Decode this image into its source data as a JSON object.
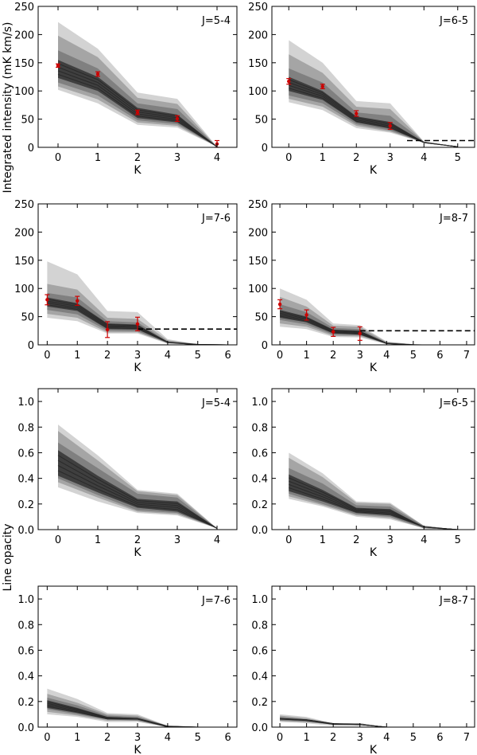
{
  "figure": {
    "ylabel_top": "Integrated intensity (mK km/s)",
    "ylabel_bottom": "Line opacity",
    "colors": {
      "outer_band": "#d3d3d3",
      "middle_band": "#a5a5a5",
      "inner_band": "#808080",
      "core_band": "#3f3f3f",
      "core_line": "#2a2a2a",
      "observed": "#cc0000",
      "limit": "#000000"
    }
  },
  "chart_data": [
    {
      "type": "area",
      "title": "J=5-4",
      "xlabel": "K",
      "ylabel": "Integrated intensity (mK km/s)",
      "xlim": [
        -0.5,
        4.5
      ],
      "ylim": [
        0,
        250
      ],
      "xticks": [
        0,
        1,
        2,
        3,
        4
      ],
      "yticks": [
        0,
        50,
        100,
        150,
        200,
        250
      ],
      "x": [
        0,
        1,
        2,
        3,
        4
      ],
      "bands": [
        {
          "name": "outer",
          "lower": [
            102,
            78,
            40,
            35,
            1
          ],
          "upper": [
            222,
            175,
            97,
            86,
            1
          ]
        },
        {
          "name": "middle",
          "lower": [
            108,
            85,
            44,
            38,
            1
          ],
          "upper": [
            198,
            160,
            88,
            77,
            1
          ]
        },
        {
          "name": "inner",
          "lower": [
            115,
            92,
            48,
            41,
            1
          ],
          "upper": [
            172,
            140,
            78,
            68,
            1
          ]
        },
        {
          "name": "core",
          "lower": [
            123,
            100,
            52,
            44,
            1
          ],
          "upper": [
            155,
            125,
            70,
            58,
            1
          ]
        }
      ],
      "observed": [
        {
          "k": 0,
          "value": 145,
          "err": 3
        },
        {
          "k": 1,
          "value": 130,
          "err": 4
        },
        {
          "k": 2,
          "value": 62,
          "err": 4
        },
        {
          "k": 3,
          "value": 51,
          "err": 5
        },
        {
          "k": 4,
          "value": 6,
          "err": 6
        }
      ]
    },
    {
      "type": "area",
      "title": "J=6-5",
      "xlabel": "K",
      "ylabel": "",
      "xlim": [
        -0.5,
        5.5
      ],
      "ylim": [
        0,
        250
      ],
      "xticks": [
        0,
        1,
        2,
        3,
        4,
        5
      ],
      "yticks": [
        0,
        50,
        100,
        150,
        200,
        250
      ],
      "x": [
        0,
        1,
        2,
        3,
        4,
        5
      ],
      "bands": [
        {
          "name": "outer",
          "lower": [
            80,
            66,
            34,
            26,
            8,
            1
          ],
          "upper": [
            190,
            150,
            82,
            78,
            10,
            1
          ]
        },
        {
          "name": "middle",
          "lower": [
            86,
            72,
            38,
            28,
            8,
            1
          ],
          "upper": [
            165,
            132,
            72,
            68,
            10,
            1
          ]
        },
        {
          "name": "inner",
          "lower": [
            92,
            78,
            41,
            30,
            8,
            1
          ],
          "upper": [
            140,
            115,
            62,
            56,
            10,
            1
          ]
        },
        {
          "name": "core",
          "lower": [
            100,
            84,
            44,
            33,
            8,
            1
          ],
          "upper": [
            125,
            100,
            55,
            45,
            9,
            1
          ]
        }
      ],
      "observed": [
        {
          "k": 0,
          "value": 117,
          "err": 5
        },
        {
          "k": 1,
          "value": 108,
          "err": 4
        },
        {
          "k": 2,
          "value": 60,
          "err": 5
        },
        {
          "k": 3,
          "value": 38,
          "err": 6
        }
      ],
      "limit": {
        "value": 12,
        "from": 3.5,
        "to": 5.5
      }
    },
    {
      "type": "area",
      "title": "J=7-6",
      "xlabel": "K",
      "ylabel": "",
      "xlim": [
        -0.3,
        6.3
      ],
      "ylim": [
        0,
        250
      ],
      "xticks": [
        0,
        1,
        2,
        3,
        4,
        5,
        6
      ],
      "yticks": [
        0,
        50,
        100,
        150,
        200,
        250
      ],
      "x": [
        0,
        1,
        2,
        3,
        4,
        5,
        6
      ],
      "bands": [
        {
          "name": "outer",
          "lower": [
            48,
            42,
            20,
            20,
            2,
            0,
            0
          ],
          "upper": [
            148,
            125,
            60,
            58,
            10,
            1,
            0
          ]
        },
        {
          "name": "middle",
          "lower": [
            55,
            48,
            22,
            22,
            3,
            0,
            0
          ],
          "upper": [
            108,
            98,
            48,
            46,
            8,
            1,
            0
          ]
        },
        {
          "name": "inner",
          "lower": [
            62,
            54,
            25,
            24,
            3,
            0,
            0
          ],
          "upper": [
            92,
            84,
            42,
            40,
            6,
            1,
            0
          ]
        },
        {
          "name": "core",
          "lower": [
            68,
            60,
            28,
            27,
            4,
            0,
            0
          ],
          "upper": [
            84,
            74,
            38,
            36,
            5,
            1,
            0
          ]
        }
      ],
      "observed": [
        {
          "k": 0,
          "value": 80,
          "err": 9
        },
        {
          "k": 1,
          "value": 78,
          "err": 8
        },
        {
          "k": 2,
          "value": 27,
          "err": 14
        },
        {
          "k": 3,
          "value": 37,
          "err": 12
        }
      ],
      "limit": {
        "value": 28,
        "from": 3.0,
        "to": 6.3
      }
    },
    {
      "type": "area",
      "title": "J=8-7",
      "xlabel": "K",
      "ylabel": "",
      "xlim": [
        -0.3,
        7.3
      ],
      "ylim": [
        0,
        250
      ],
      "xticks": [
        0,
        1,
        2,
        3,
        4,
        5,
        6,
        7
      ],
      "yticks": [
        0,
        50,
        100,
        150,
        200,
        250
      ],
      "x": [
        0,
        1,
        2,
        3,
        4,
        5,
        6,
        7
      ],
      "bands": [
        {
          "name": "outer",
          "lower": [
            32,
            28,
            14,
            13,
            1,
            0,
            0,
            0
          ],
          "upper": [
            100,
            80,
            38,
            35,
            6,
            1,
            0,
            0
          ]
        },
        {
          "name": "middle",
          "lower": [
            38,
            32,
            16,
            15,
            2,
            0,
            0,
            0
          ],
          "upper": [
            85,
            68,
            34,
            32,
            5,
            1,
            0,
            0
          ]
        },
        {
          "name": "inner",
          "lower": [
            44,
            36,
            18,
            17,
            2,
            0,
            0,
            0
          ],
          "upper": [
            72,
            58,
            30,
            28,
            4,
            1,
            0,
            0
          ]
        },
        {
          "name": "core",
          "lower": [
            48,
            40,
            20,
            18,
            2,
            0,
            0,
            0
          ],
          "upper": [
            62,
            50,
            27,
            25,
            3,
            0,
            0,
            0
          ]
        }
      ],
      "observed": [
        {
          "k": 0,
          "value": 72,
          "err": 8
        },
        {
          "k": 1,
          "value": 53,
          "err": 9
        },
        {
          "k": 2,
          "value": 23,
          "err": 8
        },
        {
          "k": 3,
          "value": 20,
          "err": 12
        }
      ],
      "limit": {
        "value": 25,
        "from": 3.0,
        "to": 7.3
      }
    },
    {
      "type": "area",
      "title": "J=5-4",
      "xlabel": "K",
      "ylabel": "Line opacity",
      "xlim": [
        -0.5,
        4.5
      ],
      "ylim": [
        0,
        1.1
      ],
      "xticks": [
        0,
        1,
        2,
        3,
        4
      ],
      "yticks": [
        0.0,
        0.2,
        0.4,
        0.6,
        0.8,
        1.0
      ],
      "ytick_labels": [
        "0.0",
        "0.2",
        "0.4",
        "0.6",
        "0.8",
        "1.0"
      ],
      "x": [
        0,
        1,
        2,
        3,
        4
      ],
      "bands": [
        {
          "name": "outer",
          "lower": [
            0.33,
            0.22,
            0.13,
            0.11,
            0.01
          ],
          "upper": [
            0.82,
            0.58,
            0.31,
            0.28,
            0.01
          ]
        },
        {
          "name": "middle",
          "lower": [
            0.37,
            0.25,
            0.14,
            0.12,
            0.01
          ],
          "upper": [
            0.77,
            0.54,
            0.3,
            0.27,
            0.01
          ]
        },
        {
          "name": "inner",
          "lower": [
            0.4,
            0.27,
            0.15,
            0.13,
            0.01
          ],
          "upper": [
            0.68,
            0.48,
            0.28,
            0.25,
            0.01
          ]
        },
        {
          "name": "core",
          "lower": [
            0.42,
            0.29,
            0.17,
            0.14,
            0.01
          ],
          "upper": [
            0.62,
            0.42,
            0.24,
            0.22,
            0.01
          ]
        }
      ]
    },
    {
      "type": "area",
      "title": "J=6-5",
      "xlabel": "K",
      "ylabel": "",
      "xlim": [
        -0.5,
        5.5
      ],
      "ylim": [
        0,
        1.1
      ],
      "xticks": [
        0,
        1,
        2,
        3,
        4,
        5
      ],
      "yticks": [
        0.0,
        0.2,
        0.4,
        0.6,
        0.8,
        1.0
      ],
      "ytick_labels": [
        "0.0",
        "0.2",
        "0.4",
        "0.6",
        "0.8",
        "1.0"
      ],
      "x": [
        0,
        1,
        2,
        3,
        4,
        5
      ],
      "bands": [
        {
          "name": "outer",
          "lower": [
            0.24,
            0.18,
            0.1,
            0.08,
            0.01,
            0.0
          ],
          "upper": [
            0.6,
            0.44,
            0.22,
            0.21,
            0.03,
            0.0
          ]
        },
        {
          "name": "middle",
          "lower": [
            0.26,
            0.19,
            0.11,
            0.09,
            0.01,
            0.0
          ],
          "upper": [
            0.56,
            0.41,
            0.21,
            0.2,
            0.03,
            0.0
          ]
        },
        {
          "name": "inner",
          "lower": [
            0.28,
            0.2,
            0.12,
            0.1,
            0.01,
            0.0
          ],
          "upper": [
            0.48,
            0.36,
            0.19,
            0.18,
            0.03,
            0.0
          ]
        },
        {
          "name": "core",
          "lower": [
            0.3,
            0.22,
            0.13,
            0.11,
            0.02,
            0.0
          ],
          "upper": [
            0.43,
            0.31,
            0.17,
            0.16,
            0.02,
            0.0
          ]
        }
      ]
    },
    {
      "type": "area",
      "title": "J=7-6",
      "xlabel": "K",
      "ylabel": "",
      "xlim": [
        -0.3,
        6.3
      ],
      "ylim": [
        0,
        1.1
      ],
      "xticks": [
        0,
        1,
        2,
        3,
        4,
        5,
        6
      ],
      "yticks": [
        0.0,
        0.2,
        0.4,
        0.6,
        0.8,
        1.0
      ],
      "ytick_labels": [
        "0.0",
        "0.2",
        "0.4",
        "0.6",
        "0.8",
        "1.0"
      ],
      "x": [
        0,
        1,
        2,
        3,
        4,
        5,
        6
      ],
      "bands": [
        {
          "name": "outer",
          "lower": [
            0.1,
            0.08,
            0.04,
            0.04,
            0.0,
            0.0,
            0.0
          ],
          "upper": [
            0.3,
            0.22,
            0.11,
            0.1,
            0.01,
            0.0,
            0.0
          ]
        },
        {
          "name": "middle",
          "lower": [
            0.12,
            0.09,
            0.05,
            0.05,
            0.0,
            0.0,
            0.0
          ],
          "upper": [
            0.26,
            0.19,
            0.1,
            0.09,
            0.01,
            0.0,
            0.0
          ]
        },
        {
          "name": "inner",
          "lower": [
            0.14,
            0.1,
            0.06,
            0.05,
            0.0,
            0.0,
            0.0
          ],
          "upper": [
            0.23,
            0.17,
            0.09,
            0.08,
            0.01,
            0.0,
            0.0
          ]
        },
        {
          "name": "core",
          "lower": [
            0.15,
            0.11,
            0.06,
            0.06,
            0.0,
            0.0,
            0.0
          ],
          "upper": [
            0.21,
            0.15,
            0.08,
            0.07,
            0.01,
            0.0,
            0.0
          ]
        }
      ]
    },
    {
      "type": "area",
      "title": "J=8-7",
      "xlabel": "K",
      "ylabel": "",
      "xlim": [
        -0.3,
        7.3
      ],
      "ylim": [
        0,
        1.1
      ],
      "xticks": [
        0,
        1,
        2,
        3,
        4,
        5,
        6,
        7
      ],
      "yticks": [
        0.0,
        0.2,
        0.4,
        0.6,
        0.8,
        1.0
      ],
      "ytick_labels": [
        "0.0",
        "0.2",
        "0.4",
        "0.6",
        "0.8",
        "1.0"
      ],
      "x": [
        0,
        1,
        2,
        3,
        4,
        5,
        6,
        7
      ],
      "bands": [
        {
          "name": "outer",
          "lower": [
            0.04,
            0.03,
            0.01,
            0.01,
            0.0,
            0.0,
            0.0,
            0.0
          ],
          "upper": [
            0.1,
            0.08,
            0.03,
            0.03,
            0.0,
            0.0,
            0.0,
            0.0
          ]
        },
        {
          "name": "middle",
          "lower": [
            0.05,
            0.04,
            0.02,
            0.02,
            0.0,
            0.0,
            0.0,
            0.0
          ],
          "upper": [
            0.09,
            0.07,
            0.03,
            0.03,
            0.0,
            0.0,
            0.0,
            0.0
          ]
        },
        {
          "name": "inner",
          "lower": [
            0.05,
            0.04,
            0.02,
            0.02,
            0.0,
            0.0,
            0.0,
            0.0
          ],
          "upper": [
            0.08,
            0.06,
            0.03,
            0.03,
            0.0,
            0.0,
            0.0,
            0.0
          ]
        },
        {
          "name": "core",
          "lower": [
            0.06,
            0.05,
            0.02,
            0.02,
            0.0,
            0.0,
            0.0,
            0.0
          ],
          "upper": [
            0.07,
            0.06,
            0.03,
            0.02,
            0.0,
            0.0,
            0.0,
            0.0
          ]
        }
      ]
    }
  ]
}
